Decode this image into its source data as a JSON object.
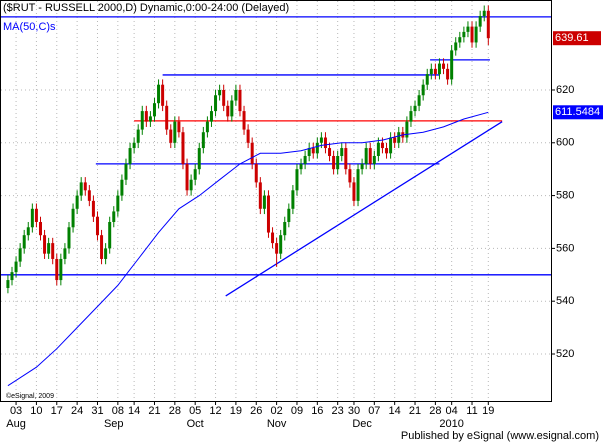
{
  "chart_data": {
    "type": "candlestick",
    "title": "($RUT - RUSSELL 2000,D) Dynamic,0:00-24:00 (Delayed)",
    "indicator_name": "MA(50,C)s",
    "watermark": "©eSignal, 2009",
    "footer": "Published by eSignal (www.esignal.com)",
    "up_color": "#008000",
    "down_color": "#cc0000",
    "xlim": [
      -3.7,
      131.4
    ],
    "ylim": [
      502.2,
      653.7
    ],
    "yticks": [
      520,
      540,
      560,
      580,
      600,
      620
    ],
    "grid": true,
    "xticks": [
      {
        "value": 0,
        "label": "03"
      },
      {
        "value": 5,
        "label": "10"
      },
      {
        "value": 10,
        "label": "17"
      },
      {
        "value": 15,
        "label": "24"
      },
      {
        "value": 20,
        "label": "31"
      },
      {
        "value": 25,
        "label": "08"
      },
      {
        "value": 29,
        "label": "14"
      },
      {
        "value": 34,
        "label": "21"
      },
      {
        "value": 39,
        "label": "28"
      },
      {
        "value": 44,
        "label": "05"
      },
      {
        "value": 49,
        "label": "12"
      },
      {
        "value": 54,
        "label": "19"
      },
      {
        "value": 59,
        "label": "26"
      },
      {
        "value": 64,
        "label": "02"
      },
      {
        "value": 69,
        "label": "09"
      },
      {
        "value": 74,
        "label": "16"
      },
      {
        "value": 79,
        "label": "23"
      },
      {
        "value": 83,
        "label": "30"
      },
      {
        "value": 88,
        "label": "07"
      },
      {
        "value": 93,
        "label": "14"
      },
      {
        "value": 98,
        "label": "21"
      },
      {
        "value": 103,
        "label": "28"
      },
      {
        "value": 107,
        "label": "04"
      },
      {
        "value": 112,
        "label": "11"
      },
      {
        "value": 116,
        "label": "19"
      }
    ],
    "month_labels": [
      {
        "value": 0,
        "label": "Aug"
      },
      {
        "value": 24,
        "label": "Sep"
      },
      {
        "value": 44,
        "label": "Oct"
      },
      {
        "value": 64,
        "label": "Nov"
      },
      {
        "value": 85,
        "label": "Dec"
      },
      {
        "value": 107,
        "label": "2010"
      }
    ],
    "candles": {
      "x": [
        -2,
        -1,
        0,
        1,
        2,
        3,
        4,
        5,
        6,
        7,
        8,
        9,
        10,
        11,
        12,
        13,
        14,
        15,
        16,
        17,
        18,
        19,
        20,
        21,
        22,
        23,
        24,
        25,
        26,
        27,
        28,
        29,
        30,
        31,
        32,
        33,
        34,
        35,
        36,
        37,
        38,
        39,
        40,
        41,
        42,
        43,
        44,
        45,
        46,
        47,
        48,
        49,
        50,
        51,
        52,
        53,
        54,
        55,
        56,
        57,
        58,
        59,
        60,
        61,
        62,
        63,
        64,
        65,
        66,
        67,
        68,
        69,
        70,
        71,
        72,
        73,
        74,
        75,
        76,
        77,
        78,
        79,
        80,
        81,
        82,
        83,
        84,
        85,
        86,
        87,
        88,
        89,
        90,
        91,
        92,
        93,
        94,
        95,
        96,
        97,
        98,
        99,
        100,
        101,
        102,
        103,
        104,
        105,
        106,
        107,
        108,
        109,
        110,
        111,
        112,
        113,
        114,
        115,
        116
      ],
      "open": [
        545,
        548,
        551,
        555,
        560,
        565,
        568,
        575,
        570,
        565,
        558,
        562,
        556,
        548,
        556,
        560,
        568,
        575,
        580,
        585,
        582,
        578,
        572,
        565,
        556,
        560,
        570,
        574,
        580,
        586,
        592,
        598,
        600,
        605,
        612,
        608,
        610,
        615,
        622,
        614,
        605,
        600,
        608,
        604,
        592,
        582,
        586,
        590,
        598,
        604,
        608,
        612,
        618,
        620,
        614,
        610,
        616,
        620,
        612,
        605,
        600,
        592,
        585,
        575,
        580,
        566,
        562,
        558,
        565,
        570,
        575,
        582,
        590,
        592,
        595,
        598,
        596,
        600,
        602,
        598,
        595,
        590,
        595,
        598,
        590,
        585,
        578,
        590,
        592,
        598,
        592,
        595,
        600,
        598,
        596,
        602,
        600,
        604,
        602,
        608,
        612,
        614,
        618,
        622,
        626,
        628,
        626,
        630,
        628,
        624,
        635,
        638,
        640,
        642,
        644,
        638,
        644,
        648,
        650
      ],
      "high": [
        550,
        553,
        557,
        562,
        567,
        570,
        577,
        577,
        572,
        567,
        564,
        564,
        558,
        558,
        562,
        570,
        577,
        582,
        587,
        587,
        584,
        580,
        574,
        567,
        562,
        572,
        576,
        582,
        588,
        594,
        600,
        602,
        607,
        614,
        614,
        612,
        617,
        624,
        624,
        616,
        607,
        610,
        610,
        606,
        594,
        588,
        592,
        600,
        606,
        610,
        614,
        620,
        622,
        622,
        616,
        618,
        622,
        622,
        614,
        607,
        602,
        594,
        587,
        582,
        582,
        568,
        564,
        567,
        572,
        577,
        584,
        592,
        594,
        597,
        600,
        600,
        602,
        604,
        604,
        600,
        597,
        597,
        600,
        600,
        592,
        587,
        592,
        594,
        600,
        600,
        597,
        602,
        602,
        600,
        604,
        604,
        606,
        606,
        610,
        614,
        616,
        620,
        624,
        628,
        630,
        630,
        632,
        632,
        630,
        637,
        640,
        642,
        644,
        646,
        646,
        646,
        650,
        652,
        652
      ],
      "low": [
        543,
        546,
        549,
        553,
        558,
        563,
        566,
        568,
        563,
        556,
        556,
        554,
        546,
        546,
        554,
        558,
        566,
        573,
        578,
        580,
        576,
        570,
        563,
        554,
        554,
        558,
        568,
        572,
        578,
        584,
        590,
        596,
        598,
        603,
        606,
        606,
        608,
        613,
        612,
        603,
        598,
        598,
        602,
        590,
        580,
        580,
        584,
        588,
        596,
        602,
        606,
        610,
        616,
        612,
        608,
        608,
        614,
        610,
        603,
        598,
        590,
        583,
        573,
        573,
        564,
        560,
        553,
        556,
        563,
        568,
        573,
        580,
        588,
        590,
        593,
        594,
        594,
        598,
        596,
        593,
        588,
        588,
        593,
        588,
        583,
        576,
        576,
        588,
        590,
        590,
        590,
        593,
        596,
        594,
        594,
        598,
        598,
        600,
        600,
        606,
        610,
        612,
        616,
        620,
        624,
        624,
        624,
        626,
        622,
        622,
        633,
        636,
        638,
        640,
        636,
        636,
        642,
        646,
        637
      ],
      "close": [
        548,
        551,
        555,
        560,
        565,
        568,
        575,
        570,
        565,
        558,
        562,
        556,
        548,
        556,
        560,
        568,
        575,
        580,
        585,
        582,
        578,
        572,
        565,
        556,
        560,
        570,
        574,
        580,
        586,
        592,
        598,
        600,
        605,
        612,
        608,
        610,
        615,
        622,
        614,
        605,
        600,
        608,
        604,
        592,
        582,
        586,
        590,
        598,
        604,
        608,
        612,
        618,
        620,
        614,
        610,
        616,
        620,
        612,
        605,
        600,
        592,
        585,
        575,
        580,
        566,
        562,
        558,
        565,
        570,
        575,
        582,
        590,
        592,
        595,
        598,
        596,
        600,
        602,
        598,
        595,
        590,
        595,
        598,
        590,
        585,
        578,
        590,
        592,
        598,
        592,
        595,
        600,
        598,
        596,
        602,
        600,
        604,
        602,
        608,
        612,
        614,
        618,
        622,
        626,
        628,
        626,
        630,
        628,
        624,
        635,
        638,
        640,
        642,
        644,
        638,
        644,
        648,
        650,
        639.61
      ]
    },
    "ma": {
      "name": "MA(50,C)s",
      "color": "#0000ff",
      "x": [
        -2,
        5,
        10,
        15,
        20,
        25,
        30,
        35,
        40,
        45,
        50,
        55,
        60,
        65,
        70,
        75,
        80,
        85,
        90,
        95,
        100,
        105,
        110,
        116
      ],
      "values": [
        508,
        515,
        522,
        530,
        538,
        546,
        556,
        566,
        575,
        580,
        586,
        592,
        596,
        596,
        597,
        599,
        600,
        600,
        601,
        603,
        604,
        606,
        609,
        611.5484
      ]
    },
    "lines": [
      {
        "color": "#0000ff",
        "x": [
          -3.7,
          131.4
        ],
        "y": [
          647.7,
          647.7
        ]
      },
      {
        "color": "#0000ff",
        "x": [
          -3.7,
          131.4
        ],
        "y": [
          550,
          550
        ]
      },
      {
        "color": "#0000ff",
        "x": [
          36,
          104
        ],
        "y": [
          625.7,
          625.7
        ]
      },
      {
        "color": "#ff0000",
        "x": [
          29,
          119.4
        ],
        "y": [
          608.3,
          608.3
        ]
      },
      {
        "color": "#0000ff",
        "x": [
          19.6,
          104
        ],
        "y": [
          592,
          592
        ]
      },
      {
        "color": "#0000ff",
        "x": [
          101.7,
          116.4
        ],
        "y": [
          631.4,
          631.4
        ]
      },
      {
        "color": "#0000ff",
        "x": [
          51.5,
          119.4
        ],
        "y": [
          542,
          608
        ]
      }
    ]
  }
}
